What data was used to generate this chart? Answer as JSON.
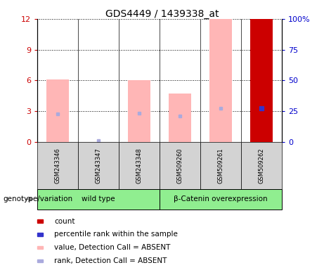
{
  "title": "GDS4449 / 1439338_at",
  "samples": [
    "GSM243346",
    "GSM243347",
    "GSM243348",
    "GSM509260",
    "GSM509261",
    "GSM509262"
  ],
  "pink_bar_heights": [
    6.1,
    0.0,
    6.0,
    4.7,
    12.0,
    0.0
  ],
  "blue_rank_heights": [
    2.7,
    0.12,
    2.8,
    2.5,
    3.3,
    0.0
  ],
  "red_bar_heights": [
    0,
    0,
    0,
    0,
    0,
    12.0
  ],
  "blue_sq_heights": [
    0,
    0,
    0,
    0,
    0,
    3.3
  ],
  "pink_bar_color": "#ffb6b6",
  "blue_rank_color": "#aaaadd",
  "red_bar_color": "#cc0000",
  "blue_sq_color": "#3333cc",
  "ylim_left": [
    0,
    12
  ],
  "ylim_right": [
    0,
    100
  ],
  "yticks_left": [
    0,
    3,
    6,
    9,
    12
  ],
  "ytick_labels_left": [
    "0",
    "3",
    "6",
    "9",
    "12"
  ],
  "yticks_right": [
    0,
    25,
    50,
    75,
    100
  ],
  "ytick_labels_right": [
    "0",
    "25",
    "50",
    "75",
    "100%"
  ],
  "left_tick_color": "#cc0000",
  "right_tick_color": "#0000cc",
  "bar_width": 0.55,
  "groups": [
    {
      "name": "wild type",
      "start": 0,
      "end": 3
    },
    {
      "name": "β-Catenin overexpression",
      "start": 3,
      "end": 6
    }
  ],
  "group_color": "#90ee90",
  "sample_box_color": "#d3d3d3",
  "legend_items": [
    {
      "label": "count",
      "color": "#cc0000"
    },
    {
      "label": "percentile rank within the sample",
      "color": "#3333cc"
    },
    {
      "label": "value, Detection Call = ABSENT",
      "color": "#ffb6b6"
    },
    {
      "label": "rank, Detection Call = ABSENT",
      "color": "#aaaadd"
    }
  ],
  "genotype_label": "genotype/variation"
}
